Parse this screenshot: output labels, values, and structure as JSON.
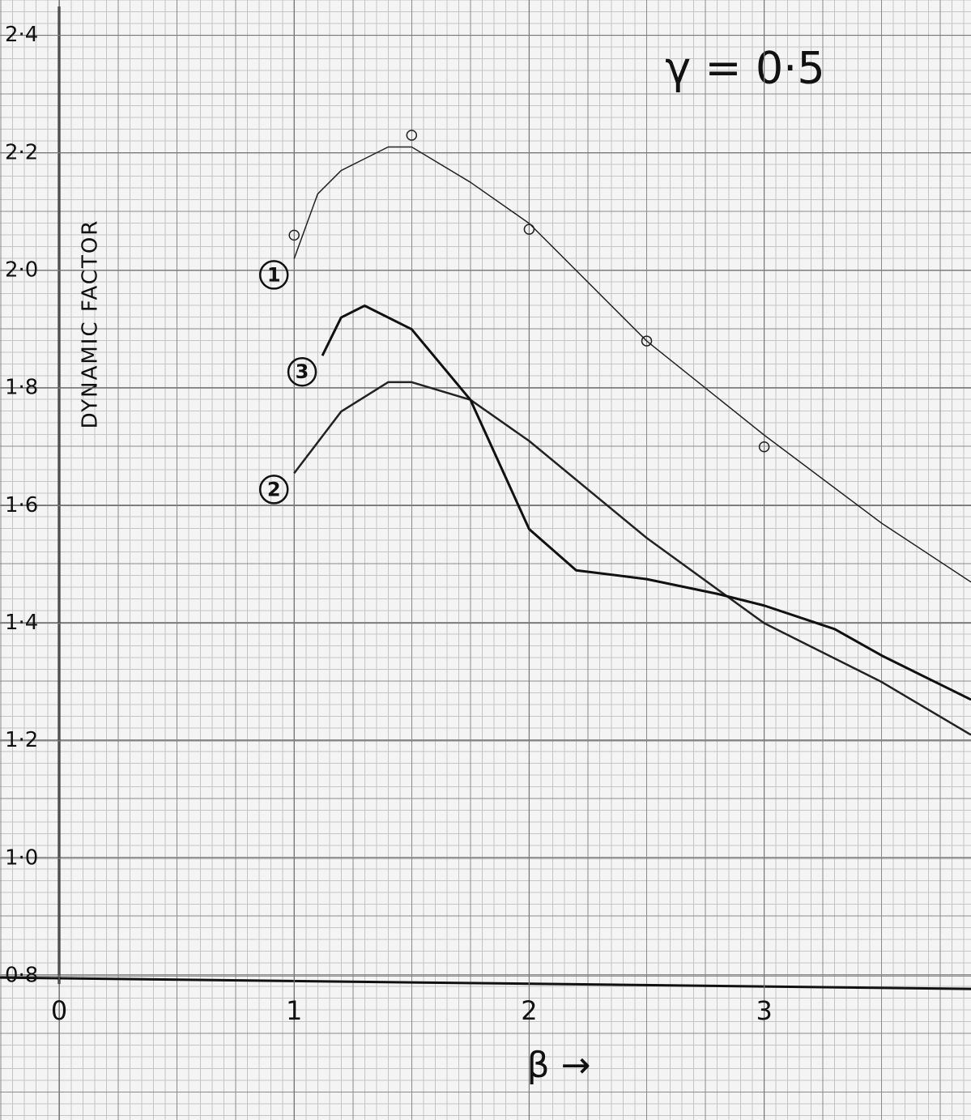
{
  "chart_data": {
    "type": "line",
    "annotation": "γ = 0·5",
    "y_label": "DYNAMIC  FACTOR",
    "x_label": "β →",
    "xlim": [
      0,
      3.88
    ],
    "ylim": [
      0.555,
      2.46
    ],
    "xticks": [
      0,
      1,
      2,
      3
    ],
    "yticks": [
      {
        "value": 0.8,
        "label": "0·8"
      },
      {
        "value": 1.0,
        "label": "1·0"
      },
      {
        "value": 1.2,
        "label": "1·2"
      },
      {
        "value": 1.4,
        "label": "1·4"
      },
      {
        "value": 1.6,
        "label": "1·6"
      },
      {
        "value": 1.8,
        "label": "1·8"
      },
      {
        "value": 2.0,
        "label": "2·0"
      },
      {
        "value": 2.2,
        "label": "2·2"
      },
      {
        "value": 2.4,
        "label": "2·4"
      }
    ],
    "grid": true,
    "series": [
      {
        "name": "1",
        "color": "#222222",
        "width": 1.5,
        "x": [
          1,
          1.1,
          1.2,
          1.3,
          1.4,
          1.5,
          1.75,
          2,
          2.5,
          3,
          3.5,
          3.88
        ],
        "values": [
          2.02,
          2.13,
          2.17,
          2.19,
          2.21,
          2.21,
          2.15,
          2.08,
          1.88,
          1.72,
          1.57,
          1.47
        ],
        "points": {
          "x": [
            1,
            1.5,
            2,
            2.5,
            3
          ],
          "values": [
            2.06,
            2.23,
            2.07,
            1.88,
            1.7
          ]
        }
      },
      {
        "name": "2",
        "color": "#222222",
        "width": 2.5,
        "x": [
          1,
          1.2,
          1.4,
          1.5,
          1.75,
          2,
          2.5,
          3,
          3.5,
          3.88
        ],
        "values": [
          1.655,
          1.76,
          1.81,
          1.81,
          1.78,
          1.71,
          1.545,
          1.4,
          1.3,
          1.21
        ]
      },
      {
        "name": "3",
        "color": "#111111",
        "width": 3,
        "x": [
          1.12,
          1.2,
          1.3,
          1.5,
          1.75,
          2,
          2.2,
          2.5,
          2.8,
          3,
          3.3,
          3.5,
          3.88
        ],
        "values": [
          1.855,
          1.92,
          1.94,
          1.9,
          1.78,
          1.56,
          1.49,
          1.475,
          1.45,
          1.43,
          1.39,
          1.345,
          1.27
        ]
      }
    ]
  }
}
